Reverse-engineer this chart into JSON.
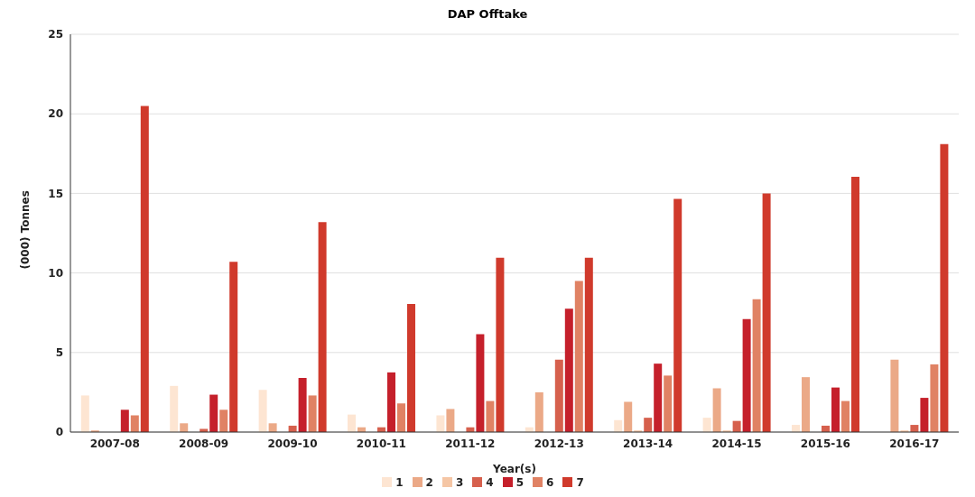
{
  "chart_data": {
    "type": "bar",
    "title": "DAP Offtake",
    "xlabel": "Year(s)",
    "ylabel": "(000) Tonnes",
    "categories": [
      "2007-08",
      "2008-09",
      "2009-10",
      "2010-11",
      "2011-12",
      "2012-13",
      "2013-14",
      "2014-15",
      "2015-16",
      "2016-17"
    ],
    "series": [
      {
        "name": "1",
        "color": "#fde5d2",
        "values": [
          2.3,
          2.9,
          2.65,
          1.1,
          1.05,
          0.3,
          0.75,
          0.9,
          0.45,
          0
        ]
      },
      {
        "name": "2",
        "color": "#eba987",
        "values": [
          0.1,
          0.55,
          0.55,
          0.3,
          1.45,
          2.5,
          1.9,
          2.75,
          3.45,
          4.55
        ]
      },
      {
        "name": "3",
        "color": "#f5c6a5",
        "values": [
          0,
          0,
          0,
          0,
          0,
          0,
          0.1,
          0.1,
          0,
          0.1
        ]
      },
      {
        "name": "4",
        "color": "#d6604d",
        "values": [
          0,
          0.2,
          0.4,
          0.3,
          0.3,
          4.55,
          0.9,
          0.7,
          0.4,
          0.45
        ]
      },
      {
        "name": "5",
        "color": "#c5202b",
        "values": [
          1.4,
          2.35,
          3.4,
          3.75,
          6.15,
          7.75,
          4.3,
          7.1,
          2.8,
          2.15
        ]
      },
      {
        "name": "6",
        "color": "#e08264",
        "values": [
          1.05,
          1.4,
          2.3,
          1.8,
          1.95,
          9.5,
          3.55,
          8.35,
          1.95,
          4.25
        ]
      },
      {
        "name": "7",
        "color": "#d03a2c",
        "values": [
          20.5,
          10.7,
          13.2,
          8.05,
          10.95,
          10.95,
          14.65,
          15,
          16.05,
          18.1
        ]
      }
    ],
    "ylim": [
      0,
      25
    ],
    "yticks": [
      0,
      5,
      10,
      15,
      20,
      25
    ],
    "grid": "y",
    "legend": "bottom"
  }
}
